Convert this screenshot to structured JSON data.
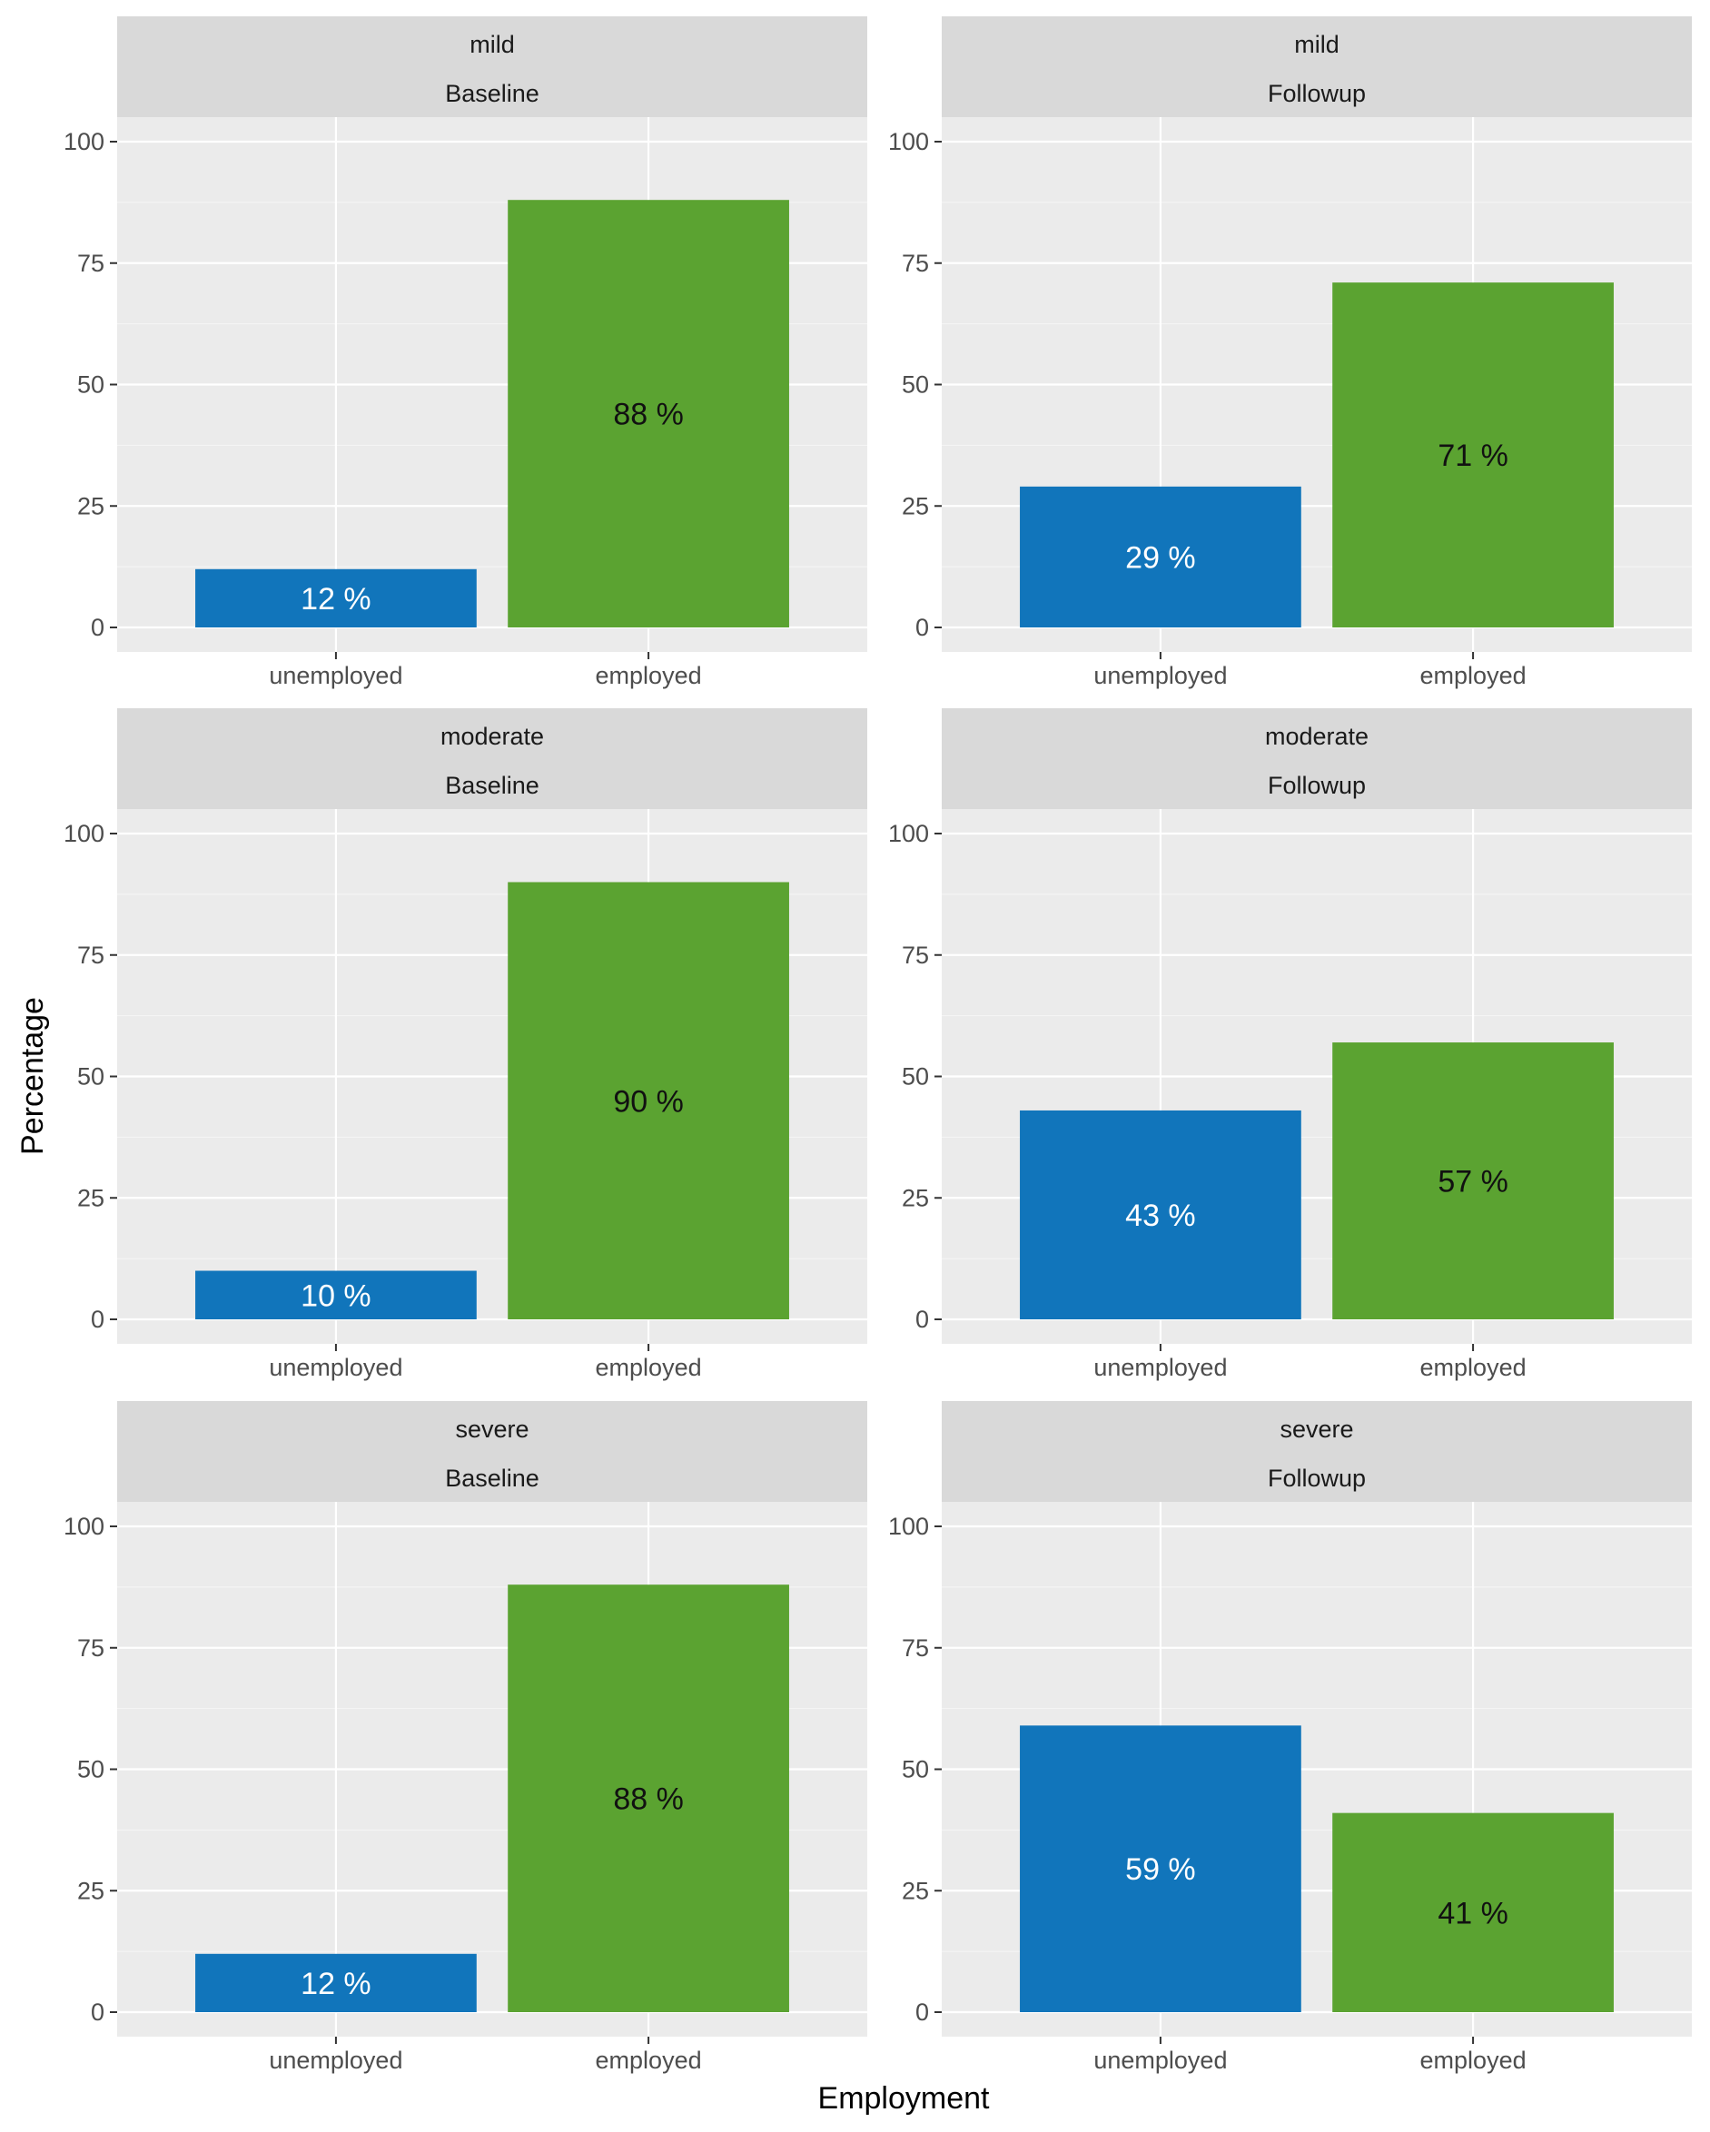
{
  "chart_data": {
    "type": "bar",
    "xlabel": "Employment",
    "ylabel": "Percentage",
    "ylim": [
      0,
      100
    ],
    "yticks": [
      0,
      25,
      50,
      75,
      100
    ],
    "categories": [
      "unemployed",
      "employed"
    ],
    "colors": {
      "unemployed": "#1175bb",
      "employed": "#5ba331"
    },
    "label_colors": {
      "unemployed": "#ffffff",
      "employed": "#111111"
    },
    "value_suffix": " %",
    "facet_rows": [
      "mild",
      "moderate",
      "severe"
    ],
    "facet_cols": [
      "Baseline",
      "Followup"
    ],
    "panels": [
      {
        "severity": "mild",
        "timepoint": "Baseline",
        "values": [
          12,
          88
        ],
        "labels": [
          "12 %",
          "88 %"
        ]
      },
      {
        "severity": "mild",
        "timepoint": "Followup",
        "values": [
          29,
          71
        ],
        "labels": [
          "29 %",
          "71 %"
        ]
      },
      {
        "severity": "moderate",
        "timepoint": "Baseline",
        "values": [
          10,
          90
        ],
        "labels": [
          "10 %",
          "90 %"
        ]
      },
      {
        "severity": "moderate",
        "timepoint": "Followup",
        "values": [
          43,
          57
        ],
        "labels": [
          "43 %",
          "57 %"
        ]
      },
      {
        "severity": "severe",
        "timepoint": "Baseline",
        "values": [
          12,
          88
        ],
        "labels": [
          "12 %",
          "88 %"
        ]
      },
      {
        "severity": "severe",
        "timepoint": "Followup",
        "values": [
          59,
          41
        ],
        "labels": [
          "59 %",
          "41 %"
        ]
      }
    ]
  }
}
